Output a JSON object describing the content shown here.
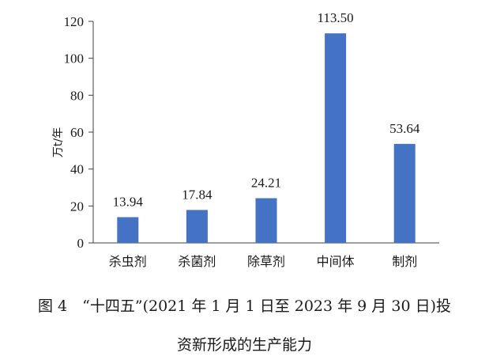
{
  "chart_data": {
    "type": "bar",
    "categories": [
      "杀虫剂",
      "杀菌剂",
      "除草剂",
      "中间体",
      "制剂"
    ],
    "values": [
      13.94,
      17.84,
      24.21,
      113.5,
      53.64
    ],
    "data_labels": [
      "13.94",
      "17.84",
      "24.21",
      "113.50",
      "53.64"
    ],
    "ylabel": "万t/年",
    "xlabel": "",
    "ylim": [
      0,
      120
    ],
    "yticks": [
      0,
      20,
      40,
      60,
      80,
      100,
      120
    ],
    "bar_color": "#4472C4",
    "grid": false,
    "legend": "none"
  },
  "caption": {
    "line1": "图 4　“十四五”(2021 年 1 月 1 日至 2023 年 9 月 30 日)投",
    "line2": "资新形成的生产能力"
  }
}
